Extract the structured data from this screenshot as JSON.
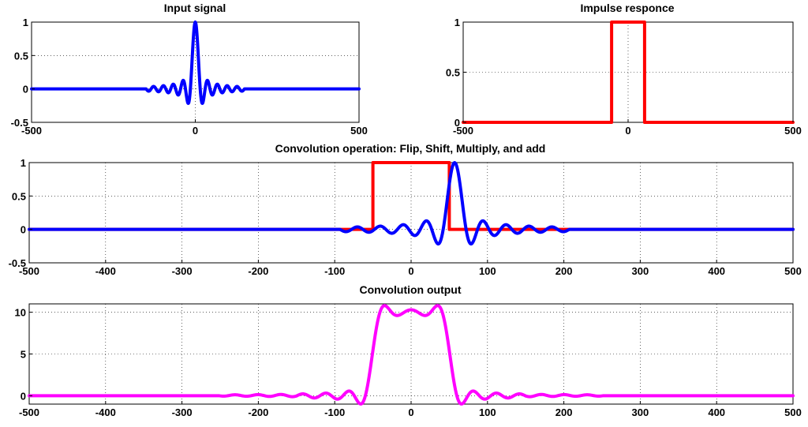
{
  "colors": {
    "input": "#0000ff",
    "impulse": "#ff0000",
    "output": "#ff00ff"
  },
  "chart_data": [
    {
      "id": "input",
      "type": "line",
      "title": "Input signal",
      "xlim": [
        -500,
        500
      ],
      "ylim": [
        -0.5,
        1
      ],
      "x_ticks": [
        -500,
        0,
        500
      ],
      "y_ticks": [
        -0.5,
        0,
        0.5,
        1
      ],
      "x_tick_labels": [
        "-500",
        "0",
        "500"
      ],
      "y_tick_labels": [
        "-0.5",
        "0",
        "0.5",
        "1"
      ],
      "grid": true,
      "series": [
        {
          "color_key": "input",
          "function": "sinc",
          "center": 0,
          "cycle": 15,
          "support": [
            -150,
            150
          ]
        }
      ]
    },
    {
      "id": "impulse",
      "type": "line",
      "title": "Impulse responce",
      "xlim": [
        -500,
        500
      ],
      "ylim": [
        0,
        1
      ],
      "x_ticks": [
        -500,
        0,
        500
      ],
      "y_ticks": [
        0,
        0.5,
        1
      ],
      "x_tick_labels": [
        "-500",
        "0",
        "500"
      ],
      "y_tick_labels": [
        "0",
        "0.5",
        "1"
      ],
      "grid": true,
      "series": [
        {
          "color_key": "impulse",
          "x": [
            -500,
            -50,
            -50,
            50,
            50,
            500
          ],
          "y": [
            0,
            0,
            1,
            1,
            0,
            0
          ]
        }
      ]
    },
    {
      "id": "operation",
      "type": "line",
      "title": "Convolution operation: Flip, Shift, Multiply, and add",
      "xlim": [
        -500,
        500
      ],
      "ylim": [
        -0.5,
        1
      ],
      "x_ticks": [
        -500,
        -400,
        -300,
        -200,
        -100,
        0,
        100,
        200,
        300,
        400,
        500
      ],
      "y_ticks": [
        -0.5,
        0,
        0.5,
        1
      ],
      "x_tick_labels": [
        "-500",
        "-400",
        "-300",
        "-200",
        "-100",
        "0",
        "100",
        "200",
        "300",
        "400",
        "500"
      ],
      "y_tick_labels": [
        "-0.5",
        "0",
        "0.5",
        "1"
      ],
      "grid": true,
      "series": [
        {
          "color_key": "impulse",
          "x": [
            -500,
            -50,
            -50,
            50,
            50,
            500
          ],
          "y": [
            0,
            0,
            1,
            1,
            0,
            0
          ]
        },
        {
          "color_key": "input",
          "function": "sinc",
          "center": 57,
          "cycle": 15,
          "support": [
            -93,
            207
          ]
        }
      ]
    },
    {
      "id": "output",
      "type": "line",
      "title": "Convolution output",
      "xlim": [
        -500,
        500
      ],
      "ylim": [
        -1,
        11
      ],
      "x_ticks": [
        -500,
        -400,
        -300,
        -200,
        -100,
        0,
        100,
        200,
        300,
        400,
        500
      ],
      "y_ticks": [
        0,
        5,
        10
      ],
      "x_tick_labels": [
        "-500",
        "-400",
        "-300",
        "-200",
        "-100",
        "0",
        "100",
        "200",
        "300",
        "400",
        "500"
      ],
      "y_tick_labels": [
        "0",
        "5",
        "10"
      ],
      "grid": true,
      "series": [
        {
          "color_key": "output",
          "function": "sinc_conv_rect",
          "cycle": 15,
          "rect_half_width": 50,
          "support": [
            -200,
            200
          ],
          "scale": 10
        }
      ]
    }
  ]
}
